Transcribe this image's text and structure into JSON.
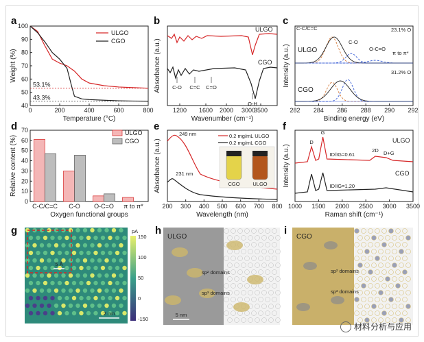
{
  "figure": {
    "panels": [
      "a",
      "b",
      "c",
      "d",
      "e",
      "f",
      "g",
      "h",
      "i"
    ],
    "watermark": "材料分析与应用"
  },
  "colors": {
    "ulgo": "#d62728",
    "cgo": "#222222",
    "ulgo_bar": "#f4b6b6",
    "cgo_bar": "#bdbdbd",
    "afm_high": "#e9f06a",
    "afm_low": "#3b2d7a",
    "tem_domain": "#cdb76a"
  },
  "chart_data": [
    {
      "id": "a",
      "type": "line",
      "xlabel": "Temperature (°C)",
      "ylabel": "Weight (%)",
      "xlim": [
        0,
        800
      ],
      "ylim": [
        40,
        100
      ],
      "xticks": [
        "0",
        "100",
        "200",
        "300",
        "400",
        "500",
        "600",
        "700",
        "800"
      ],
      "yticks": [
        "40",
        "50",
        "60",
        "70",
        "80",
        "90",
        "100"
      ],
      "series": [
        {
          "name": "ULGO",
          "x": [
            0,
            50,
            100,
            150,
            200,
            250,
            300,
            350,
            400,
            500,
            600,
            700,
            800
          ],
          "y": [
            100,
            96,
            85,
            75,
            72,
            70,
            66,
            60,
            57,
            55,
            54,
            53.5,
            53.1
          ]
        },
        {
          "name": "CGO",
          "x": [
            0,
            50,
            100,
            150,
            200,
            250,
            280,
            300,
            350,
            400,
            500,
            600,
            700,
            800
          ],
          "y": [
            100,
            95,
            88,
            80,
            75,
            68,
            55,
            47,
            45,
            44.5,
            44,
            43.6,
            43.4,
            43.3
          ]
        }
      ],
      "annotations": [
        "53.1%",
        "43.3%"
      ]
    },
    {
      "id": "b",
      "type": "line",
      "xlabel": "Wavenumber (cm⁻¹)",
      "ylabel": "Absorbance (a.u.)",
      "xticks": [
        "1200",
        "1600",
        "2000",
        "3000",
        "3500"
      ],
      "series": [
        {
          "name": "ULGO"
        },
        {
          "name": "CGO"
        }
      ],
      "annotations": [
        "C-O",
        "C=C",
        "C=O",
        "O-H"
      ]
    },
    {
      "id": "c",
      "type": "line",
      "xlabel": "Binding energy (eV)",
      "ylabel": "Intensity (a.u.)",
      "xlim": [
        292,
        282
      ],
      "xticks": [
        "282",
        "284",
        "286",
        "288",
        "290",
        "292"
      ],
      "series": [
        {
          "name": "ULGO"
        },
        {
          "name": "CGO"
        }
      ],
      "annotations": [
        "C-C/C=C",
        "C-O",
        "O-C=O",
        "π to π*",
        "23.1% O",
        "31.2% O"
      ]
    },
    {
      "id": "d",
      "type": "bar",
      "xlabel": "Oxygen functional groups",
      "ylabel": "Relative content (%)",
      "categories": [
        "C-C/C=C",
        "C-O",
        "O-C=O",
        "π to π*"
      ],
      "ylim": [
        0,
        70
      ],
      "yticks": [
        "0",
        "10",
        "20",
        "30",
        "40",
        "50",
        "60",
        "70"
      ],
      "series": [
        {
          "name": "ULGO",
          "values": [
            61,
            30,
            5.5,
            4
          ]
        },
        {
          "name": "CGO",
          "values": [
            47,
            45.5,
            7.5,
            0
          ]
        }
      ]
    },
    {
      "id": "e",
      "type": "line",
      "xlabel": "Wavelength (nm)",
      "ylabel": "Absorbance (a.u.)",
      "xlim": [
        200,
        800
      ],
      "xticks": [
        "200",
        "300",
        "400",
        "500",
        "600",
        "700",
        "800"
      ],
      "series": [
        {
          "name": "0.2 mg/mL ULGO",
          "peak": "249 nm"
        },
        {
          "name": "0.2 mg/mL CGO",
          "peak": "231 nm"
        }
      ],
      "inset_labels": [
        "CGO",
        "ULGO"
      ]
    },
    {
      "id": "f",
      "type": "line",
      "xlabel": "Raman shift (cm⁻¹)",
      "ylabel": "Intensity (a.u.)",
      "xlim": [
        1000,
        3500
      ],
      "xticks": [
        "1000",
        "1500",
        "2000",
        "2500",
        "3000",
        "3500"
      ],
      "series": [
        {
          "name": "ULGO",
          "ratio_label": "ID/IG=0.61"
        },
        {
          "name": "CGO",
          "ratio_label": "ID/IG=1.20"
        }
      ],
      "peak_labels": [
        "D",
        "G",
        "2D",
        "D+G"
      ]
    }
  ],
  "images": {
    "g": {
      "scale_small": "5 Å",
      "scale_big": "2 nm",
      "colorbar_unit": "pA",
      "colorbar_ticks": [
        "150",
        "100",
        "50",
        "0",
        "-150"
      ]
    },
    "h": {
      "title": "ULGO",
      "label_sp2_top": "sp² domains",
      "label_sp3": "sp³ domains",
      "scale": "5 nm"
    },
    "i": {
      "title": "CGO",
      "label_sp2": "sp² domains",
      "label_sp3": "sp³ domains"
    }
  }
}
